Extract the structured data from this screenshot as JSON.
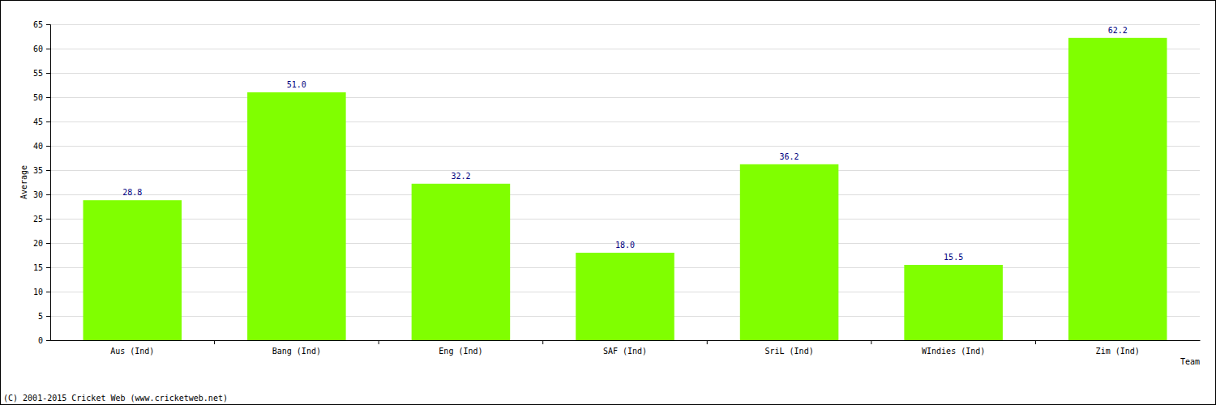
{
  "chart_data": {
    "type": "bar",
    "x_label": "Team",
    "y_label": "Average",
    "annotations": [
      "(C) 2001-2015 Cricket Web (www.cricketweb.net)"
    ],
    "categories": [
      "Aus (Ind)",
      "Bang (Ind)",
      "Eng (Ind)",
      "SAF (Ind)",
      "SriL (Ind)",
      "WIndies (Ind)",
      "Zim (Ind)"
    ],
    "values": [
      28.8,
      51.0,
      32.2,
      18.0,
      36.2,
      15.5,
      62.2
    ],
    "value_labels": [
      "28.8",
      "51.0",
      "32.2",
      "18.0",
      "36.2",
      "15.5",
      "62.2"
    ],
    "color": "#80ff00",
    "ylim": [
      0,
      65
    ],
    "yticks": [
      0,
      5,
      10,
      15,
      20,
      25,
      30,
      35,
      40,
      45,
      50,
      55,
      60,
      65
    ],
    "grid": true,
    "data_labels": true
  }
}
